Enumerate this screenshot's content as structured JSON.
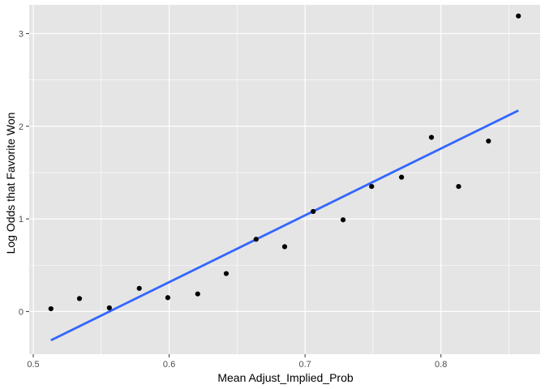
{
  "chart_data": {
    "type": "scatter",
    "xlabel": "Mean Adjust_Implied_Prob",
    "ylabel": "Log Odds that Favorite Won",
    "xlim": [
      0.497,
      0.873
    ],
    "ylim": [
      -0.46,
      3.31
    ],
    "x_ticks": [
      0.5,
      0.6,
      0.7,
      0.8
    ],
    "x_tick_labels": [
      "0.5",
      "0.6",
      "0.7",
      "0.8"
    ],
    "y_ticks": [
      0,
      1,
      2,
      3
    ],
    "y_tick_labels": [
      "0",
      "1",
      "2",
      "3"
    ],
    "grid": true,
    "panel_background": "#E5E5E5",
    "grid_color": "#FFFFFF",
    "point_color": "#000000",
    "line_color": "#3366FF",
    "points": [
      {
        "x": 0.513,
        "y": 0.03
      },
      {
        "x": 0.534,
        "y": 0.14
      },
      {
        "x": 0.556,
        "y": 0.04
      },
      {
        "x": 0.578,
        "y": 0.25
      },
      {
        "x": 0.599,
        "y": 0.15
      },
      {
        "x": 0.621,
        "y": 0.19
      },
      {
        "x": 0.642,
        "y": 0.41
      },
      {
        "x": 0.664,
        "y": 0.78
      },
      {
        "x": 0.685,
        "y": 0.7
      },
      {
        "x": 0.706,
        "y": 1.08
      },
      {
        "x": 0.728,
        "y": 0.99
      },
      {
        "x": 0.749,
        "y": 1.35
      },
      {
        "x": 0.771,
        "y": 1.45
      },
      {
        "x": 0.793,
        "y": 1.88
      },
      {
        "x": 0.813,
        "y": 1.35
      },
      {
        "x": 0.835,
        "y": 1.84
      },
      {
        "x": 0.857,
        "y": 3.19
      }
    ],
    "fit_line": {
      "x": [
        0.513,
        0.857
      ],
      "y": [
        -0.31,
        2.17
      ]
    }
  }
}
